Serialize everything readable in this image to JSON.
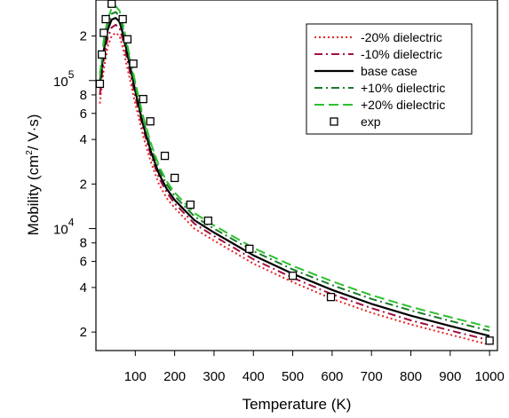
{
  "chart_data": {
    "type": "line",
    "xlabel": "Temperature (K)",
    "ylabel_main": "Mobility (cm",
    "ylabel_sup": "2",
    "ylabel_tail": "/ V·s)",
    "x_ticks": [
      100,
      200,
      300,
      400,
      500,
      600,
      700,
      800,
      900,
      1000
    ],
    "xlim": [
      0,
      1020
    ],
    "y_scale": "log",
    "ylim": [
      1500,
      350000
    ],
    "y_major_ticks": [
      {
        "value": 10000,
        "base": "10",
        "exp": "4"
      },
      {
        "value": 100000,
        "base": "10",
        "exp": "5"
      }
    ],
    "y_minor_ticks": [
      {
        "value": 2000,
        "label": "2"
      },
      {
        "value": 4000,
        "label": "4"
      },
      {
        "value": 6000,
        "label": "6"
      },
      {
        "value": 8000,
        "label": "8"
      },
      {
        "value": 20000,
        "label": "2"
      },
      {
        "value": 40000,
        "label": "4"
      },
      {
        "value": 60000,
        "label": "6"
      },
      {
        "value": 80000,
        "label": "8"
      },
      {
        "value": 200000,
        "label": "2"
      }
    ],
    "legend_position": "top-right",
    "series": [
      {
        "name": "-20% dielectric",
        "color": "#e8231f",
        "dash": "2,3",
        "width": 2,
        "x": [
          10,
          20,
          30,
          40,
          50,
          60,
          70,
          80,
          100,
          120,
          140,
          160,
          180,
          200,
          250,
          300,
          400,
          500,
          600,
          700,
          800,
          900,
          1000
        ],
        "y": [
          70000,
          120000,
          170000,
          200000,
          210000,
          200000,
          160000,
          120000,
          70000,
          42000,
          28000,
          20000,
          16000,
          13800,
          10000,
          8300,
          5800,
          4350,
          3350,
          2700,
          2250,
          1920,
          1640
        ]
      },
      {
        "name": "-10% dielectric",
        "color": "#a01040",
        "dash": "9,4,2,4",
        "width": 2,
        "x": [
          10,
          20,
          30,
          40,
          50,
          60,
          70,
          80,
          100,
          120,
          140,
          160,
          180,
          200,
          250,
          300,
          400,
          500,
          600,
          700,
          800,
          900,
          1000
        ],
        "y": [
          80000,
          140000,
          195000,
          228000,
          238000,
          226000,
          182000,
          136000,
          78000,
          47000,
          31000,
          22000,
          17500,
          14800,
          10800,
          8900,
          6200,
          4650,
          3600,
          2900,
          2400,
          2050,
          1760
        ]
      },
      {
        "name": "base case",
        "color": "#000000",
        "dash": "",
        "width": 2.2,
        "x": [
          10,
          20,
          30,
          40,
          50,
          60,
          70,
          80,
          100,
          120,
          140,
          160,
          180,
          200,
          250,
          300,
          400,
          500,
          600,
          700,
          800,
          900,
          1000
        ],
        "y": [
          92000,
          160000,
          220000,
          258000,
          265000,
          250000,
          200000,
          150000,
          85000,
          50000,
          33000,
          23500,
          18500,
          15600,
          11400,
          9400,
          6600,
          4950,
          3850,
          3100,
          2580,
          2200,
          1880
        ]
      },
      {
        "name": "+10% dielectric",
        "color": "#1a7a2a",
        "dash": "9,4,2,4",
        "width": 2,
        "x": [
          10,
          20,
          30,
          40,
          50,
          60,
          70,
          80,
          100,
          120,
          140,
          160,
          180,
          200,
          250,
          300,
          400,
          500,
          600,
          700,
          800,
          900,
          1000
        ],
        "y": [
          100000,
          175000,
          240000,
          282000,
          290000,
          272000,
          216000,
          162000,
          92000,
          54000,
          35500,
          25200,
          19800,
          16600,
          12100,
          10000,
          7050,
          5300,
          4150,
          3350,
          2800,
          2380,
          2040
        ]
      },
      {
        "name": "+20% dielectric",
        "color": "#2fc02f",
        "dash": "11,5",
        "width": 2,
        "x": [
          10,
          20,
          30,
          40,
          50,
          60,
          70,
          80,
          100,
          120,
          140,
          160,
          180,
          200,
          250,
          300,
          400,
          500,
          600,
          700,
          800,
          900,
          1000
        ],
        "y": [
          110000,
          190000,
          260000,
          308000,
          318000,
          296000,
          232000,
          172000,
          97000,
          57000,
          37500,
          26500,
          20800,
          17500,
          12700,
          10500,
          7400,
          5600,
          4400,
          3550,
          2960,
          2520,
          2160
        ]
      }
    ],
    "exp": {
      "name": "exp",
      "x": [
        10,
        15,
        20,
        25,
        40,
        68,
        80,
        95,
        120,
        138,
        175,
        200,
        240,
        285,
        390,
        500,
        597,
        1000
      ],
      "y": [
        95000,
        150000,
        210000,
        260000,
        330000,
        260000,
        190000,
        130000,
        75000,
        53000,
        31000,
        22000,
        14500,
        11300,
        7300,
        4800,
        3450,
        1750
      ]
    }
  }
}
